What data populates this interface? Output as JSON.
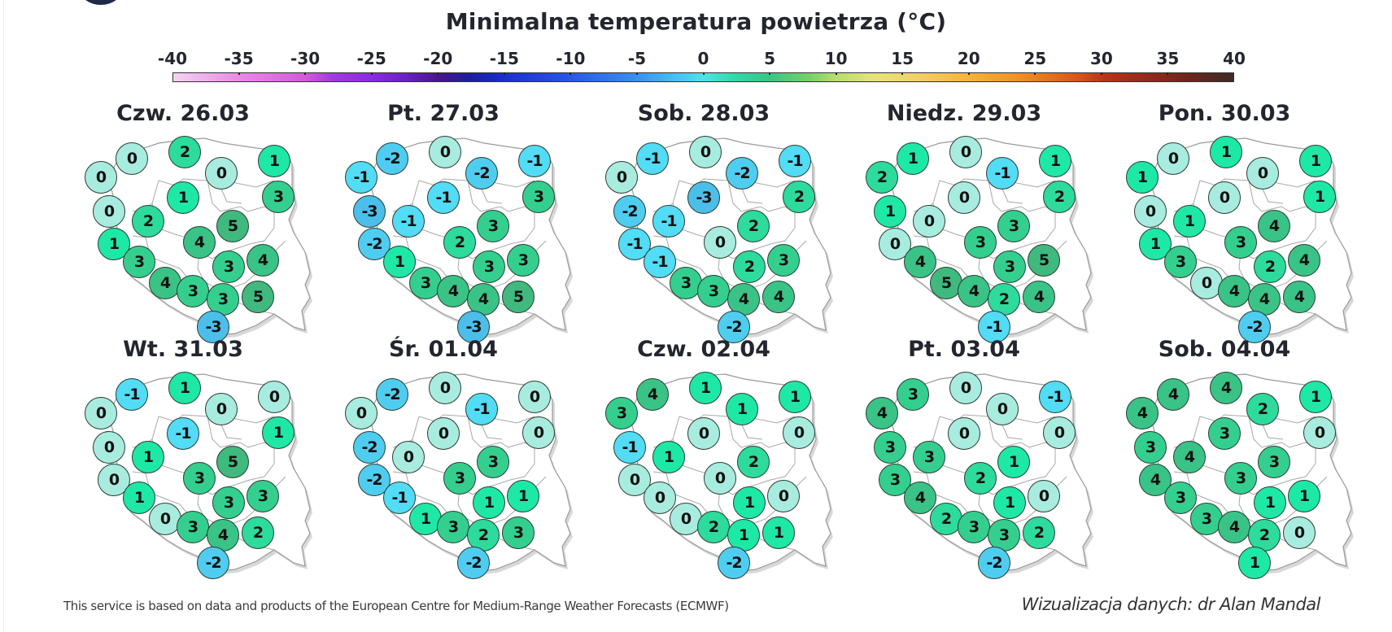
{
  "title": "Minimalna temperatura powietrza (°C)",
  "footer": {
    "source": "This service is based on data and products of the European Centre for Medium-Range Weather Forecasts (ECMWF)",
    "credit": "Wizualizacja danych: dr Alan Mandal"
  },
  "colors": {
    "minus3": "#4bbfe9",
    "minus2": "#4fcdf0",
    "minus1": "#52dcf5",
    "zero": "#a8ecdf",
    "one": "#1ee8a6",
    "two": "#2ddb9c",
    "three": "#34cf8f",
    "four": "#3ac386",
    "five": "#40b97f"
  },
  "chart_data": {
    "type": "heatmap",
    "title": "Minimalna temperatura powietrza (°C)",
    "colorbar": {
      "ticks": [
        -40,
        -35,
        -30,
        -25,
        -20,
        -15,
        -10,
        -5,
        0,
        5,
        10,
        15,
        20,
        25,
        30,
        35,
        40
      ],
      "range": [
        -40,
        40
      ],
      "unit": "°C"
    },
    "station_positions": [
      [
        49,
        108
      ],
      [
        87,
        85
      ],
      [
        152,
        77
      ],
      [
        197,
        103
      ],
      [
        262,
        88
      ],
      [
        267,
        132
      ],
      [
        150,
        133
      ],
      [
        59,
        150
      ],
      [
        107,
        162
      ],
      [
        211,
        168
      ],
      [
        170,
        188
      ],
      [
        65,
        190
      ],
      [
        96,
        212
      ],
      [
        206,
        218
      ],
      [
        248,
        210
      ],
      [
        128,
        238
      ],
      [
        162,
        248
      ],
      [
        199,
        258
      ],
      [
        242,
        255
      ],
      [
        187,
        292
      ]
    ],
    "days": [
      {
        "label": "Czw. 26.03",
        "values": [
          0,
          0,
          2,
          0,
          1,
          3,
          1,
          0,
          2,
          5,
          4,
          1,
          3,
          3,
          4,
          4,
          3,
          3,
          5,
          -3
        ]
      },
      {
        "label": "Pt. 27.03",
        "values": [
          -1,
          -2,
          0,
          -2,
          -1,
          3,
          -1,
          -3,
          -1,
          3,
          2,
          -2,
          1,
          3,
          3,
          3,
          4,
          4,
          5,
          -3
        ]
      },
      {
        "label": "Sob. 28.03",
        "values": [
          0,
          -1,
          0,
          -2,
          -1,
          2,
          -3,
          -2,
          -1,
          2,
          0,
          -1,
          -1,
          2,
          3,
          3,
          3,
          4,
          4,
          -2
        ]
      },
      {
        "label": "Niedz. 29.03",
        "values": [
          2,
          1,
          0,
          -1,
          1,
          2,
          0,
          1,
          0,
          3,
          3,
          0,
          4,
          3,
          5,
          5,
          4,
          2,
          4,
          -1
        ]
      },
      {
        "label": "Pon. 30.03",
        "values": [
          1,
          0,
          1,
          0,
          1,
          1,
          0,
          0,
          1,
          4,
          3,
          1,
          3,
          2,
          4,
          0,
          4,
          4,
          4,
          -2
        ]
      },
      {
        "label": "Wt. 31.03",
        "values": [
          0,
          -1,
          1,
          0,
          0,
          1,
          -1,
          0,
          1,
          5,
          3,
          0,
          1,
          3,
          3,
          0,
          3,
          4,
          2,
          -2
        ]
      },
      {
        "label": "Śr. 01.04",
        "values": [
          0,
          -2,
          0,
          -1,
          0,
          0,
          0,
          -2,
          0,
          3,
          3,
          -2,
          -1,
          1,
          1,
          1,
          3,
          2,
          3,
          -2
        ]
      },
      {
        "label": "Czw. 02.04",
        "values": [
          3,
          4,
          1,
          1,
          1,
          0,
          0,
          -1,
          1,
          2,
          0,
          0,
          0,
          1,
          0,
          0,
          2,
          1,
          1,
          -2
        ]
      },
      {
        "label": "Pt. 03.04",
        "values": [
          4,
          3,
          0,
          0,
          -1,
          0,
          0,
          3,
          3,
          1,
          2,
          3,
          4,
          1,
          0,
          2,
          3,
          3,
          2,
          -2
        ]
      },
      {
        "label": "Sob. 04.04",
        "values": [
          4,
          4,
          4,
          2,
          1,
          0,
          3,
          3,
          4,
          3,
          3,
          4,
          3,
          1,
          1,
          3,
          4,
          2,
          0,
          1
        ]
      }
    ]
  }
}
